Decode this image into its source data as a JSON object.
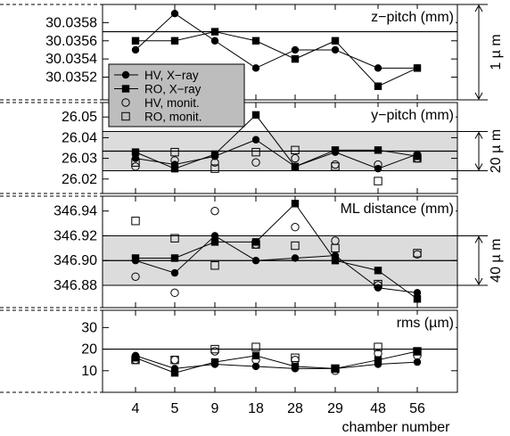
{
  "chart_data": {
    "type": "line",
    "categories": [
      "4",
      "5",
      "9",
      "18",
      "28",
      "29",
      "48",
      "56"
    ],
    "xlabel": "chamber number",
    "panels": [
      {
        "title": "z−pitch (mm)",
        "ylim": [
          30.03495,
          30.036
        ],
        "yticks": [
          30.0352,
          30.0354,
          30.0356,
          30.0358
        ],
        "yticklabels": [
          "30.0352",
          "30.0354",
          "30.0356",
          "30.0358"
        ],
        "ref_line": 30.0357,
        "band": null,
        "scale_label": "1 µ m",
        "scale_range": [
          30.03495,
          30.036
        ],
        "legend": [
          {
            "label": "HV, X−ray",
            "marker": "filled-circle",
            "line": true
          },
          {
            "label": "RO, X−ray",
            "marker": "filled-square",
            "line": true
          },
          {
            "label": "HV, monit.",
            "marker": "open-circle",
            "line": false
          },
          {
            "label": "RO, monit.",
            "marker": "open-square",
            "line": false
          }
        ],
        "series": [
          {
            "name": "HV, X−ray",
            "marker": "filled-circle",
            "line": true,
            "values": [
              30.0355,
              30.0359,
              30.0356,
              30.0353,
              30.0355,
              30.0355,
              30.0353,
              30.0353
            ]
          },
          {
            "name": "RO, X−ray",
            "marker": "filled-square",
            "line": true,
            "values": [
              30.0356,
              30.0356,
              30.0357,
              30.0356,
              30.0354,
              30.0356,
              30.0351,
              30.0353
            ]
          }
        ]
      },
      {
        "title": "y−pitch (mm)",
        "ylim": [
          26.013,
          26.057
        ],
        "yticks": [
          26.02,
          26.03,
          26.04,
          26.05
        ],
        "yticklabels": [
          "26.02",
          "26.03",
          "26.04",
          "26.05"
        ],
        "ref_line": 26.0335,
        "band": [
          26.024,
          26.043
        ],
        "scale_label": "20 µ m",
        "scale_range": [
          26.024,
          26.043
        ],
        "series": [
          {
            "name": "HV, X−ray",
            "marker": "filled-circle",
            "line": true,
            "values": [
              26.03,
              26.027,
              26.031,
              26.039,
              26.026,
              26.033,
              26.025,
              26.032
            ]
          },
          {
            "name": "RO, X−ray",
            "marker": "filled-square",
            "line": true,
            "values": [
              26.033,
              26.025,
              26.032,
              26.051,
              26.026,
              26.034,
              26.034,
              26.031
            ]
          },
          {
            "name": "HV, monit.",
            "marker": "open-circle",
            "line": false,
            "values": [
              26.026,
              26.029,
              26.028,
              26.028,
              26.03,
              26.027,
              26.027,
              26.03
            ]
          },
          {
            "name": "RO, monit.",
            "marker": "open-square",
            "line": false,
            "values": [
              26.028,
              26.033,
              26.025,
              26.033,
              26.034,
              26.026,
              26.019,
              26.03
            ]
          }
        ]
      },
      {
        "title": "ML distance (mm)",
        "ylim": [
          346.862,
          346.952
        ],
        "yticks": [
          346.88,
          346.9,
          346.92,
          346.94
        ],
        "yticklabels": [
          "346.88",
          "346.90",
          "346.92",
          "346.94"
        ],
        "ref_line": 346.9,
        "band": [
          346.88,
          346.92
        ],
        "scale_label": "40 µ m",
        "scale_range": [
          346.88,
          346.92
        ],
        "series": [
          {
            "name": "HV, X−ray",
            "marker": "filled-circle",
            "line": true,
            "values": [
              346.9,
              346.89,
              346.92,
              346.9,
              346.902,
              346.904,
              346.878,
              346.874
            ]
          },
          {
            "name": "RO, X−ray",
            "marker": "filled-square",
            "line": true,
            "values": [
              346.902,
              346.902,
              346.915,
              346.915,
              346.946,
              346.9,
              346.892,
              346.869
            ]
          },
          {
            "name": "HV, monit.",
            "marker": "open-circle",
            "line": false,
            "values": [
              346.887,
              346.874,
              346.94,
              346.913,
              346.927,
              346.916,
              346.88,
              346.905
            ]
          },
          {
            "name": "RO, monit.",
            "marker": "open-square",
            "line": false,
            "values": [
              346.932,
              346.918,
              346.896,
              346.913,
              346.912,
              346.91,
              346.881,
              346.906
            ]
          }
        ]
      },
      {
        "title": "rms (µm)",
        "ylim": [
          0,
          38
        ],
        "yticks": [
          10,
          20,
          30
        ],
        "yticklabels": [
          "10",
          "20",
          "30"
        ],
        "ref_line": 20,
        "band": null,
        "scale_label": "",
        "scale_range": null,
        "series": [
          {
            "name": "HV, X−ray",
            "marker": "filled-circle",
            "line": true,
            "values": [
              17,
              11,
              13,
              12,
              11,
              11,
              13,
              14
            ]
          },
          {
            "name": "RO, X−ray",
            "marker": "filled-square",
            "line": true,
            "values": [
              16,
              9,
              14,
              17,
              12,
              11,
              15,
              19
            ]
          },
          {
            "name": "HV, monit.",
            "marker": "open-circle",
            "line": false,
            "values": [
              15,
              15,
              19,
              15,
              15,
              10,
              18,
              17
            ]
          },
          {
            "name": "RO, monit.",
            "marker": "open-square",
            "line": false,
            "values": [
              15,
              15,
              20,
              21,
              16,
              11,
              21,
              19
            ]
          }
        ]
      }
    ]
  }
}
